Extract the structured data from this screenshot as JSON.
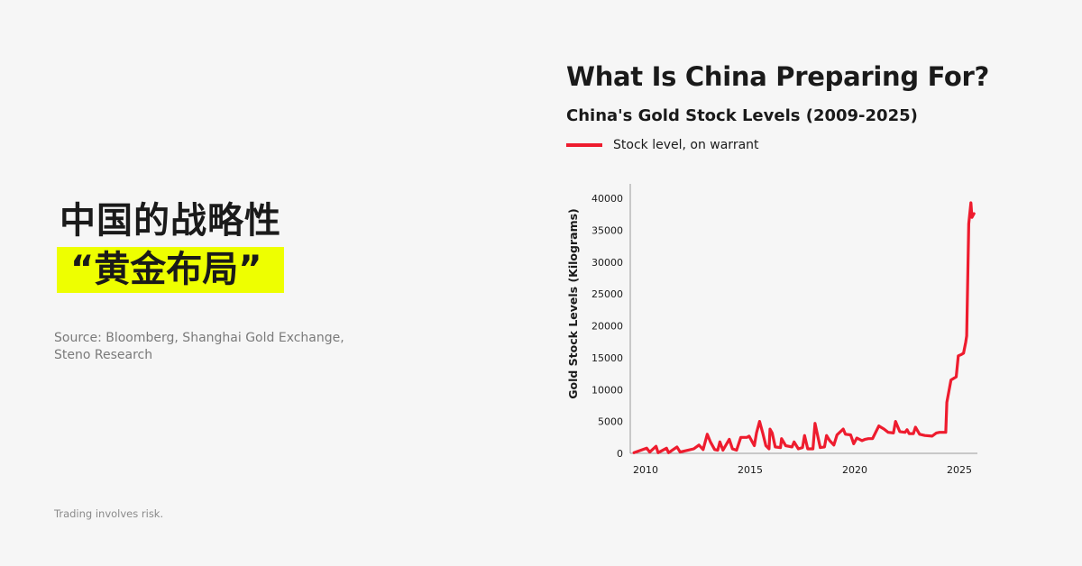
{
  "left": {
    "headline_line1": "中国的战略性",
    "headline_line2": "“黄金布局”",
    "highlight_color": "#eeff00",
    "source": "Source: Bloomberg, Shanghai Gold Exchange, Steno Research",
    "disclaimer": "Trading involves risk."
  },
  "chart_data": {
    "type": "line",
    "title": "What Is China Preparing For?",
    "subtitle": "China's Gold Stock Levels (2009-2025)",
    "ylabel": "Gold Stock Levels (Kilograms)",
    "xlabel": "",
    "xlim": [
      2009.45,
      2025.8
    ],
    "ylim": [
      0,
      40000
    ],
    "x_ticks": [
      2010,
      2015,
      2020,
      2025
    ],
    "y_ticks": [
      0,
      5000,
      10000,
      15000,
      20000,
      25000,
      30000,
      35000,
      40000
    ],
    "grid": false,
    "legend_position": "top-left",
    "series": [
      {
        "name": "Stock level, on warrant",
        "color": "#ee1c2e",
        "points": [
          [
            2009.45,
            100
          ],
          [
            2010.05,
            800
          ],
          [
            2010.2,
            200
          ],
          [
            2010.5,
            1100
          ],
          [
            2010.6,
            100
          ],
          [
            2011.0,
            800
          ],
          [
            2011.1,
            100
          ],
          [
            2011.5,
            1000
          ],
          [
            2011.65,
            200
          ],
          [
            2012.3,
            700
          ],
          [
            2012.55,
            1300
          ],
          [
            2012.75,
            600
          ],
          [
            2012.95,
            3000
          ],
          [
            2013.1,
            1800
          ],
          [
            2013.3,
            600
          ],
          [
            2013.45,
            500
          ],
          [
            2013.55,
            1800
          ],
          [
            2013.7,
            500
          ],
          [
            2014.0,
            2200
          ],
          [
            2014.15,
            700
          ],
          [
            2014.35,
            500
          ],
          [
            2014.55,
            2500
          ],
          [
            2014.85,
            2500
          ],
          [
            2014.95,
            2700
          ],
          [
            2015.2,
            1200
          ],
          [
            2015.3,
            3200
          ],
          [
            2015.45,
            5000
          ],
          [
            2015.6,
            3200
          ],
          [
            2015.75,
            1200
          ],
          [
            2015.9,
            700
          ],
          [
            2015.95,
            3800
          ],
          [
            2016.05,
            3200
          ],
          [
            2016.2,
            1000
          ],
          [
            2016.45,
            900
          ],
          [
            2016.5,
            2300
          ],
          [
            2016.7,
            1200
          ],
          [
            2017.0,
            1000
          ],
          [
            2017.1,
            1800
          ],
          [
            2017.3,
            700
          ],
          [
            2017.5,
            900
          ],
          [
            2017.6,
            2800
          ],
          [
            2017.75,
            700
          ],
          [
            2018.0,
            700
          ],
          [
            2018.1,
            4700
          ],
          [
            2018.2,
            3200
          ],
          [
            2018.35,
            900
          ],
          [
            2018.55,
            1000
          ],
          [
            2018.65,
            2800
          ],
          [
            2018.8,
            2000
          ],
          [
            2019.0,
            1300
          ],
          [
            2019.15,
            2900
          ],
          [
            2019.45,
            3800
          ],
          [
            2019.55,
            3000
          ],
          [
            2019.8,
            2900
          ],
          [
            2019.95,
            1500
          ],
          [
            2020.1,
            2400
          ],
          [
            2020.35,
            2000
          ],
          [
            2020.5,
            2200
          ],
          [
            2020.65,
            2300
          ],
          [
            2020.85,
            2300
          ],
          [
            2021.15,
            4300
          ],
          [
            2021.4,
            3800
          ],
          [
            2021.6,
            3300
          ],
          [
            2021.85,
            3200
          ],
          [
            2021.95,
            5000
          ],
          [
            2022.15,
            3400
          ],
          [
            2022.4,
            3300
          ],
          [
            2022.5,
            3700
          ],
          [
            2022.6,
            3100
          ],
          [
            2022.8,
            3100
          ],
          [
            2022.9,
            4100
          ],
          [
            2023.1,
            3000
          ],
          [
            2023.35,
            2800
          ],
          [
            2023.7,
            2700
          ],
          [
            2023.9,
            3200
          ],
          [
            2024.05,
            3300
          ],
          [
            2024.35,
            3300
          ],
          [
            2024.4,
            8000
          ],
          [
            2024.6,
            11500
          ],
          [
            2024.85,
            12000
          ],
          [
            2024.95,
            15300
          ],
          [
            2025.1,
            15500
          ],
          [
            2025.2,
            15700
          ],
          [
            2025.3,
            17400
          ],
          [
            2025.35,
            18400
          ],
          [
            2025.45,
            36000
          ],
          [
            2025.55,
            39300
          ],
          [
            2025.6,
            37000
          ],
          [
            2025.7,
            37600
          ]
        ]
      }
    ]
  }
}
